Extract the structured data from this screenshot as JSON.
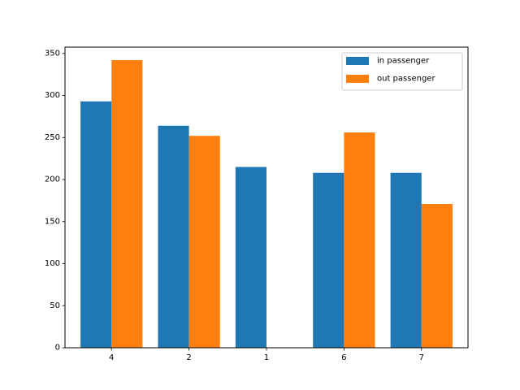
{
  "chart_data": {
    "type": "bar",
    "categories": [
      "4",
      "2",
      "1",
      "6",
      "7"
    ],
    "series": [
      {
        "name": "in passenger",
        "values": [
          293,
          264,
          215,
          208,
          208
        ],
        "color": "#1f77b4"
      },
      {
        "name": "out passenger",
        "values": [
          342,
          252,
          0,
          256,
          171
        ],
        "color": "#ff7f0e"
      }
    ],
    "ylim": [
      0,
      357.5
    ],
    "yticks": [
      "0",
      "50",
      "100",
      "150",
      "200",
      "250",
      "300",
      "350"
    ],
    "legend_position": "top-right",
    "grid": false
  }
}
